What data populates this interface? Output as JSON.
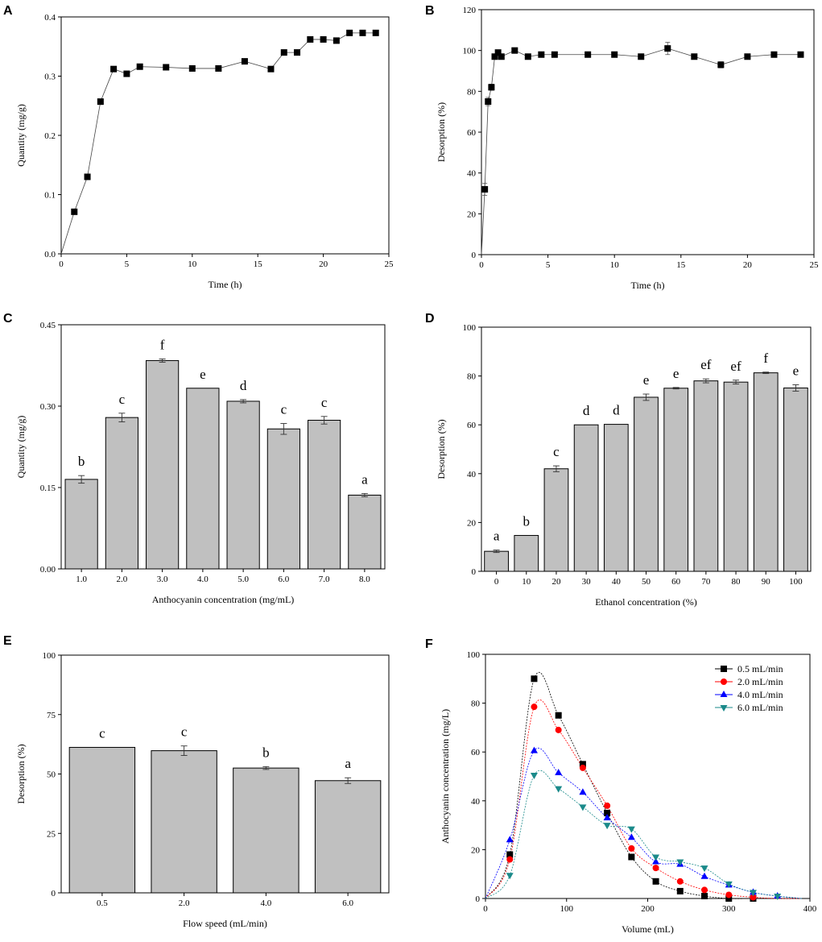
{
  "chart_data": [
    {
      "id": "A",
      "type": "line",
      "panel_label": "A",
      "xlabel": "Time (h)",
      "ylabel": "Quantity (mg/g)",
      "xlim": [
        0,
        25
      ],
      "ylim": [
        0,
        0.4
      ],
      "xticks": [
        0,
        5,
        10,
        15,
        20,
        25
      ],
      "yticks": [
        0.0,
        0.1,
        0.2,
        0.3,
        0.4
      ],
      "ytick_labels": [
        "0.0",
        "0.1",
        "0.2",
        "0.3",
        "0.4"
      ],
      "series": [
        {
          "name": "Quantity",
          "color": "#000000",
          "marker": "square",
          "x": [
            0,
            1,
            2,
            3,
            4,
            5,
            6,
            8,
            10,
            12,
            14,
            16,
            17,
            18,
            19,
            20,
            21,
            22,
            23,
            24
          ],
          "y": [
            0,
            0.071,
            0.13,
            0.257,
            0.312,
            0.304,
            0.316,
            0.315,
            0.313,
            0.313,
            0.325,
            0.312,
            0.34,
            0.34,
            0.362,
            0.362,
            0.36,
            0.373,
            0.373,
            0.373
          ]
        }
      ]
    },
    {
      "id": "B",
      "type": "line",
      "panel_label": "B",
      "xlabel": "Time (h)",
      "ylabel": "Desorption (%)",
      "xlim": [
        0,
        25
      ],
      "ylim": [
        0,
        120
      ],
      "xticks": [
        0,
        5,
        10,
        15,
        20,
        25
      ],
      "yticks": [
        0,
        20,
        40,
        60,
        80,
        100,
        120
      ],
      "series": [
        {
          "name": "Desorption",
          "color": "#000000",
          "marker": "square",
          "x": [
            0,
            0.25,
            0.5,
            0.75,
            1,
            1.25,
            1.5,
            2.5,
            3.5,
            4.5,
            5.5,
            8,
            10,
            12,
            14,
            16,
            18,
            20,
            22,
            24
          ],
          "y": [
            0,
            32,
            75,
            82,
            97,
            99,
            97,
            100,
            97,
            98,
            98,
            98,
            98,
            97,
            101,
            97,
            93,
            97,
            98,
            98
          ],
          "err": [
            0,
            3,
            2,
            1.5,
            1,
            1,
            1,
            1,
            1,
            1,
            0.5,
            0.5,
            0.5,
            0.5,
            3,
            0.5,
            1.5,
            0.5,
            0.5,
            0.5
          ]
        }
      ]
    },
    {
      "id": "C",
      "type": "bar",
      "panel_label": "C",
      "xlabel": "Anthocyanin concentration (mg/mL)",
      "ylabel": "Quantity (mg/g)",
      "ylim": [
        0,
        0.45
      ],
      "yticks": [
        0.0,
        0.15,
        0.3,
        0.45
      ],
      "ytick_labels": [
        "0.00",
        "0.15",
        "0.30",
        "0.45"
      ],
      "categories": [
        "1.0",
        "2.0",
        "3.0",
        "4.0",
        "5.0",
        "6.0",
        "7.0",
        "8.0"
      ],
      "values": [
        0.165,
        0.279,
        0.384,
        0.333,
        0.309,
        0.258,
        0.274,
        0.136
      ],
      "err": [
        0.007,
        0.008,
        0.003,
        0,
        0.003,
        0.01,
        0.007,
        0.003
      ],
      "letters": [
        "b",
        "c",
        "f",
        "e",
        "d",
        "c",
        "c",
        "a"
      ]
    },
    {
      "id": "D",
      "type": "bar",
      "panel_label": "D",
      "xlabel": "Ethanol concentration (%)",
      "ylabel": "Desorption (%)",
      "ylim": [
        0,
        100
      ],
      "yticks": [
        0,
        20,
        40,
        60,
        80,
        100
      ],
      "categories": [
        "0",
        "10",
        "20",
        "30",
        "40",
        "50",
        "60",
        "70",
        "80",
        "90",
        "100"
      ],
      "values": [
        8.2,
        14.7,
        42,
        60,
        60.2,
        71.3,
        75,
        78,
        77.5,
        81.3,
        75.1
      ],
      "err": [
        0.5,
        0,
        1.2,
        0,
        0,
        1.3,
        0.3,
        0.8,
        0.8,
        0.3,
        1.3
      ],
      "letters": [
        "a",
        "b",
        "c",
        "d",
        "d",
        "e",
        "e",
        "ef",
        "ef",
        "f",
        "e"
      ]
    },
    {
      "id": "E",
      "type": "bar",
      "panel_label": "E",
      "xlabel": "Flow speed (mL/min)",
      "ylabel": "Desorption (%)",
      "ylim": [
        0,
        100
      ],
      "yticks": [
        0,
        25,
        50,
        75,
        100
      ],
      "categories": [
        "0.5",
        "2.0",
        "4.0",
        "6.0"
      ],
      "values": [
        61.2,
        59.8,
        52.5,
        47.2
      ],
      "err": [
        0,
        2,
        0.6,
        1.2
      ],
      "letters": [
        "c",
        "c",
        "b",
        "a"
      ]
    },
    {
      "id": "F",
      "type": "scatter",
      "panel_label": "F",
      "xlabel": "Volume (mL)",
      "ylabel": "Anthocyanin concentration (mg/L)",
      "xlim": [
        0,
        400
      ],
      "ylim": [
        0,
        100
      ],
      "xticks": [
        0,
        100,
        200,
        300,
        400
      ],
      "yticks": [
        0,
        20,
        40,
        60,
        80,
        100
      ],
      "legend_position": "top-right",
      "series": [
        {
          "name": "0.5 mL/min",
          "color": "#000000",
          "marker": "square",
          "x": [
            0,
            30,
            60,
            90,
            120,
            150,
            180,
            210,
            240,
            270,
            300,
            330,
            360,
            390
          ],
          "y": [
            0,
            18,
            90,
            75,
            55,
            35,
            17,
            7,
            3,
            1,
            0,
            0,
            0,
            0
          ]
        },
        {
          "name": "2.0 mL/min",
          "color": "#ff0000",
          "marker": "circle",
          "x": [
            0,
            30,
            60,
            90,
            120,
            150,
            180,
            210,
            240,
            270,
            300,
            330,
            360,
            390
          ],
          "y": [
            0,
            16,
            78.5,
            69,
            53.5,
            38,
            20.5,
            12.5,
            7,
            3.5,
            1.5,
            0.5,
            0,
            0
          ]
        },
        {
          "name": "4.0 mL/min",
          "color": "#0000ff",
          "marker": "triangle-up",
          "x": [
            0,
            30,
            60,
            90,
            120,
            150,
            180,
            210,
            240,
            270,
            300,
            330,
            360,
            390
          ],
          "y": [
            0,
            24,
            60.5,
            51.5,
            43.5,
            33,
            25,
            15,
            14,
            9,
            5.5,
            2.5,
            1,
            0
          ]
        },
        {
          "name": "6.0 mL/min",
          "color": "#1a8a8a",
          "marker": "triangle-down",
          "x": [
            0,
            30,
            60,
            90,
            120,
            150,
            180,
            210,
            240,
            270,
            300,
            330,
            360,
            390
          ],
          "y": [
            0,
            9.5,
            50.5,
            45,
            37.5,
            30,
            28.5,
            17,
            15,
            12.5,
            6,
            2.5,
            1,
            0
          ]
        }
      ]
    }
  ]
}
